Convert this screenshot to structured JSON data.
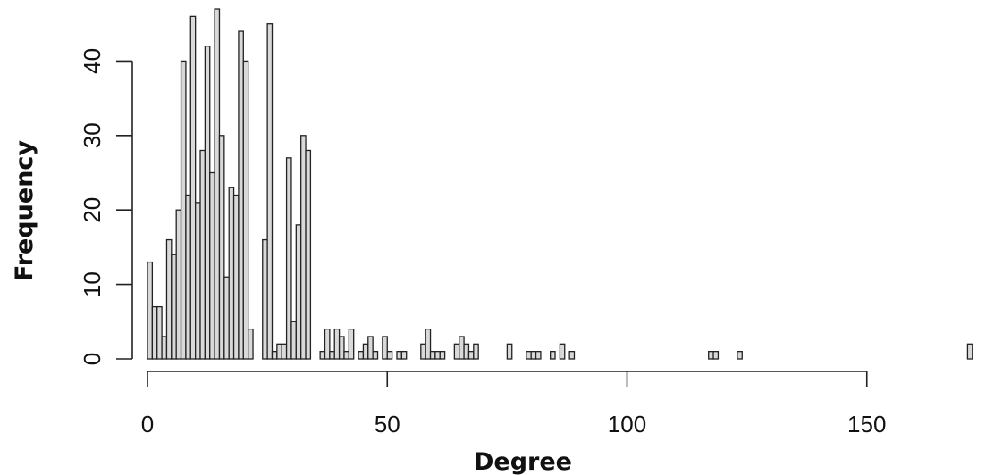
{
  "chart_data": {
    "type": "bar",
    "title": "",
    "xlabel": "Degree",
    "ylabel": "Frequency",
    "xlim": [
      0,
      173
    ],
    "ylim": [
      0,
      47
    ],
    "bin_width": 1,
    "x_ticks": [
      0,
      50,
      100,
      150
    ],
    "y_ticks": [
      0,
      10,
      20,
      30,
      40
    ],
    "grid": false,
    "legend": "none",
    "bar_color": "#d9d9d9",
    "edge_color": "#222222",
    "bins": [
      {
        "x": 0,
        "y": 13
      },
      {
        "x": 1,
        "y": 7
      },
      {
        "x": 2,
        "y": 7
      },
      {
        "x": 3,
        "y": 3
      },
      {
        "x": 4,
        "y": 16
      },
      {
        "x": 5,
        "y": 14
      },
      {
        "x": 6,
        "y": 20
      },
      {
        "x": 7,
        "y": 40
      },
      {
        "x": 8,
        "y": 22
      },
      {
        "x": 9,
        "y": 46
      },
      {
        "x": 10,
        "y": 21
      },
      {
        "x": 11,
        "y": 28
      },
      {
        "x": 12,
        "y": 42
      },
      {
        "x": 13,
        "y": 25
      },
      {
        "x": 14,
        "y": 47
      },
      {
        "x": 15,
        "y": 30
      },
      {
        "x": 16,
        "y": 11
      },
      {
        "x": 17,
        "y": 23
      },
      {
        "x": 18,
        "y": 22
      },
      {
        "x": 19,
        "y": 44
      },
      {
        "x": 20,
        "y": 40
      },
      {
        "x": 21,
        "y": 4
      },
      {
        "x": 24,
        "y": 16
      },
      {
        "x": 25,
        "y": 45
      },
      {
        "x": 26,
        "y": 1
      },
      {
        "x": 27,
        "y": 2
      },
      {
        "x": 28,
        "y": 2
      },
      {
        "x": 29,
        "y": 27
      },
      {
        "x": 30,
        "y": 5
      },
      {
        "x": 31,
        "y": 18
      },
      {
        "x": 32,
        "y": 30
      },
      {
        "x": 33,
        "y": 28
      },
      {
        "x": 36,
        "y": 1
      },
      {
        "x": 37,
        "y": 4
      },
      {
        "x": 38,
        "y": 1
      },
      {
        "x": 39,
        "y": 4
      },
      {
        "x": 40,
        "y": 3
      },
      {
        "x": 41,
        "y": 1
      },
      {
        "x": 42,
        "y": 4
      },
      {
        "x": 44,
        "y": 1
      },
      {
        "x": 45,
        "y": 2
      },
      {
        "x": 46,
        "y": 3
      },
      {
        "x": 47,
        "y": 1
      },
      {
        "x": 49,
        "y": 3
      },
      {
        "x": 50,
        "y": 1
      },
      {
        "x": 52,
        "y": 1
      },
      {
        "x": 53,
        "y": 1
      },
      {
        "x": 57,
        "y": 2
      },
      {
        "x": 58,
        "y": 4
      },
      {
        "x": 59,
        "y": 1
      },
      {
        "x": 60,
        "y": 1
      },
      {
        "x": 61,
        "y": 1
      },
      {
        "x": 64,
        "y": 2
      },
      {
        "x": 65,
        "y": 3
      },
      {
        "x": 66,
        "y": 2
      },
      {
        "x": 67,
        "y": 1
      },
      {
        "x": 68,
        "y": 2
      },
      {
        "x": 75,
        "y": 2
      },
      {
        "x": 79,
        "y": 1
      },
      {
        "x": 80,
        "y": 1
      },
      {
        "x": 81,
        "y": 1
      },
      {
        "x": 84,
        "y": 1
      },
      {
        "x": 86,
        "y": 2
      },
      {
        "x": 88,
        "y": 1
      },
      {
        "x": 117,
        "y": 1
      },
      {
        "x": 118,
        "y": 1
      },
      {
        "x": 123,
        "y": 1
      },
      {
        "x": 171,
        "y": 2
      }
    ]
  }
}
